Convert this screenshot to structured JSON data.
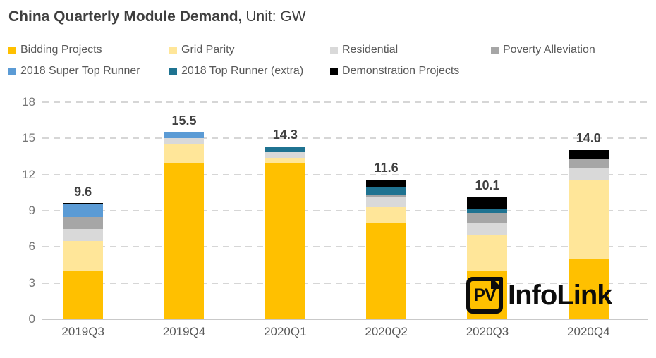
{
  "title": {
    "main": "China Quarterly Module Demand,",
    "suffix": "Unit: GW"
  },
  "logo": {
    "badge": "PV",
    "name": "InfoLink"
  },
  "chart_data": {
    "type": "bar",
    "stacked": true,
    "title": "China Quarterly Module Demand",
    "unit": "GW",
    "categories": [
      "2019Q3",
      "2019Q4",
      "2020Q1",
      "2020Q2",
      "2020Q3",
      "2020Q4"
    ],
    "series": [
      {
        "name": "Bidding Projects",
        "color": "#FFC000",
        "values": [
          4.0,
          13.0,
          13.0,
          8.0,
          4.0,
          5.0
        ]
      },
      {
        "name": "Grid Parity",
        "color": "#FFE699",
        "values": [
          2.5,
          1.5,
          0.4,
          1.3,
          3.0,
          6.5
        ]
      },
      {
        "name": "Residential",
        "color": "#D9D9D9",
        "values": [
          1.0,
          0.5,
          0.5,
          0.8,
          1.0,
          1.0
        ]
      },
      {
        "name": "Poverty Alleviation",
        "color": "#A6A6A6",
        "values": [
          1.0,
          0.0,
          0.0,
          0.2,
          0.8,
          0.8
        ]
      },
      {
        "name": "2018 Super Top Runner",
        "color": "#5B9BD5",
        "values": [
          1.0,
          0.5,
          0.0,
          0.0,
          0.0,
          0.0
        ]
      },
      {
        "name": "2018 Top Runner (extra)",
        "color": "#1F7391",
        "values": [
          0.0,
          0.0,
          0.4,
          0.7,
          0.3,
          0.0
        ]
      },
      {
        "name": "Demonstration Projects",
        "color": "#000000",
        "values": [
          0.1,
          0.0,
          0.0,
          0.6,
          1.0,
          0.7
        ]
      }
    ],
    "totals": [
      "9.6",
      "15.5",
      "14.3",
      "11.6",
      "10.1",
      "14.0"
    ],
    "yticks": [
      0,
      3,
      6,
      9,
      12,
      15,
      18
    ],
    "ylim": [
      0,
      18
    ],
    "grid": "dashed-horizontal",
    "legend_position": "top"
  }
}
